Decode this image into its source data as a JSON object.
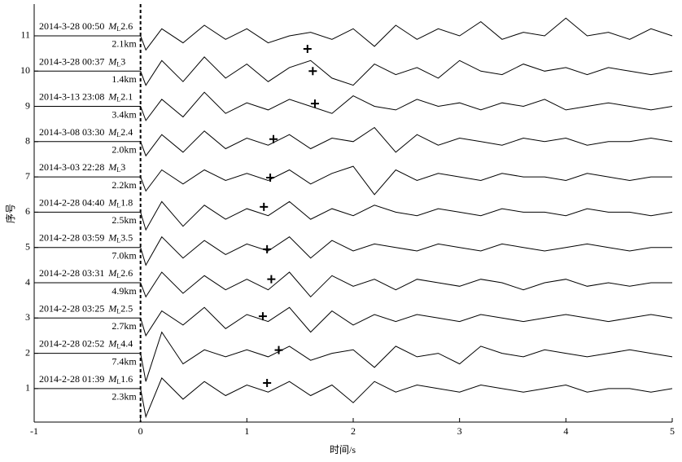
{
  "chart_data": {
    "type": "seismogram",
    "xlabel": "时间/s",
    "ylabel": "序号",
    "xlim": [
      -1,
      5
    ],
    "xticks": [
      -1,
      0,
      1,
      2,
      3,
      4,
      5
    ],
    "ylim": [
      0.05,
      11.9
    ],
    "yticks": [
      1,
      2,
      3,
      4,
      5,
      6,
      7,
      8,
      9,
      10,
      11
    ],
    "reference_line_x": 0,
    "color": "#000000",
    "magnitude_symbol": "M",
    "magnitude_subscript": "L",
    "x": [
      -1,
      0,
      0.05,
      0.2,
      0.4,
      0.6,
      0.8,
      1.0,
      1.2,
      1.4,
      1.6,
      1.8,
      2.0,
      2.2,
      2.4,
      2.6,
      2.8,
      3.0,
      3.2,
      3.4,
      3.6,
      3.8,
      4.0,
      4.2,
      4.4,
      4.6,
      4.8,
      5.0
    ],
    "series": [
      {
        "name": "2014-2-28 01:39",
        "magnitude": 1.6,
        "distance": "2.3km",
        "pick_x": 1.19,
        "pick_y": 1.16,
        "values": [
          1,
          1,
          0.2,
          1.3,
          0.7,
          1.2,
          0.8,
          1.1,
          0.9,
          1.2,
          0.8,
          1.1,
          0.6,
          1.2,
          0.9,
          1.1,
          1.0,
          0.9,
          1.1,
          1.0,
          0.9,
          1.0,
          1.1,
          0.9,
          1.0,
          1.0,
          0.9,
          1.0
        ]
      },
      {
        "name": "2014-2-28 02:52",
        "magnitude": 4.4,
        "distance": "7.4km",
        "pick_x": 1.3,
        "pick_y": 2.09,
        "values": [
          2,
          2,
          1.2,
          2.6,
          1.7,
          2.1,
          1.9,
          2.1,
          1.9,
          2.2,
          1.8,
          2.0,
          2.1,
          1.6,
          2.2,
          1.9,
          2.0,
          1.7,
          2.2,
          2.0,
          1.9,
          2.1,
          2.0,
          1.9,
          2.0,
          2.1,
          2.0,
          1.9
        ]
      },
      {
        "name": "2014-2-28 03:25",
        "magnitude": 2.5,
        "distance": "2.7km",
        "pick_x": 1.15,
        "pick_y": 3.05,
        "values": [
          3,
          3,
          2.5,
          3.2,
          2.8,
          3.3,
          2.7,
          3.1,
          2.9,
          3.3,
          2.6,
          3.2,
          2.8,
          3.1,
          2.9,
          3.1,
          3.0,
          2.9,
          3.1,
          3.0,
          2.9,
          3.0,
          3.1,
          3.0,
          2.9,
          3.0,
          3.1,
          3.0
        ]
      },
      {
        "name": "2014-2-28 03:31",
        "magnitude": 2.6,
        "distance": "4.9km",
        "pick_x": 1.23,
        "pick_y": 4.1,
        "values": [
          4,
          4,
          3.6,
          4.3,
          3.7,
          4.2,
          3.8,
          4.1,
          3.8,
          4.3,
          3.6,
          4.2,
          3.9,
          4.1,
          3.8,
          4.1,
          4.0,
          3.9,
          4.1,
          4.0,
          3.8,
          4.0,
          4.1,
          3.9,
          4.0,
          3.9,
          4.0,
          4.0
        ]
      },
      {
        "name": "2014-2-28 03:59",
        "magnitude": 3.5,
        "distance": "7.0km",
        "pick_x": 1.19,
        "pick_y": 4.95,
        "values": [
          5,
          5,
          4.5,
          5.3,
          4.7,
          5.2,
          4.8,
          5.1,
          4.9,
          5.3,
          4.7,
          5.2,
          4.9,
          5.1,
          5.0,
          4.9,
          5.1,
          5.0,
          4.9,
          5.1,
          5.0,
          4.9,
          5.0,
          5.1,
          5.0,
          4.9,
          5.0,
          5.0
        ]
      },
      {
        "name": "2014-2-28 04:40",
        "magnitude": 1.8,
        "distance": "2.5km",
        "pick_x": 1.16,
        "pick_y": 6.15,
        "values": [
          6,
          6,
          5.5,
          6.3,
          5.6,
          6.2,
          5.8,
          6.1,
          5.9,
          6.3,
          5.8,
          6.1,
          5.9,
          6.2,
          6.0,
          5.9,
          6.1,
          6.0,
          5.9,
          6.1,
          6.0,
          6.0,
          5.9,
          6.1,
          6.0,
          6.0,
          5.9,
          6.0
        ]
      },
      {
        "name": "2014-3-03 22:28",
        "magnitude": 3.0,
        "distance": "2.2km",
        "pick_x": 1.22,
        "pick_y": 6.98,
        "values": [
          7,
          7,
          6.6,
          7.2,
          6.8,
          7.2,
          6.9,
          7.1,
          6.9,
          7.2,
          6.8,
          7.1,
          7.3,
          6.5,
          7.2,
          6.9,
          7.1,
          7.0,
          6.9,
          7.1,
          7.0,
          7.0,
          6.9,
          7.1,
          7.0,
          6.9,
          7.0,
          7.0
        ]
      },
      {
        "name": "2014-3-08 03:30",
        "magnitude": 2.4,
        "distance": "2.0km",
        "pick_x": 1.25,
        "pick_y": 8.07,
        "values": [
          8,
          8,
          7.6,
          8.2,
          7.7,
          8.3,
          7.8,
          8.1,
          7.9,
          8.2,
          7.8,
          8.1,
          8.0,
          8.4,
          7.7,
          8.2,
          7.9,
          8.1,
          8.0,
          7.9,
          8.1,
          8.0,
          8.1,
          7.9,
          8.0,
          8.0,
          8.1,
          8.0
        ]
      },
      {
        "name": "2014-3-13 23:08",
        "magnitude": 2.1,
        "distance": "3.4km",
        "pick_x": 1.64,
        "pick_y": 9.08,
        "values": [
          9,
          9,
          8.6,
          9.2,
          8.7,
          9.4,
          8.8,
          9.1,
          8.9,
          9.2,
          9.0,
          8.8,
          9.3,
          9.0,
          8.9,
          9.2,
          9.0,
          9.1,
          8.9,
          9.1,
          9.0,
          9.2,
          8.9,
          9.0,
          9.1,
          9.0,
          8.9,
          9.0
        ]
      },
      {
        "name": "2014-3-28 00:37",
        "magnitude": 3.0,
        "distance": "1.4km",
        "pick_x": 1.62,
        "pick_y": 10.0,
        "values": [
          10,
          10,
          9.6,
          10.3,
          9.7,
          10.4,
          9.8,
          10.2,
          9.7,
          10.1,
          10.3,
          9.8,
          9.6,
          10.2,
          9.9,
          10.1,
          9.8,
          10.3,
          10.0,
          9.9,
          10.2,
          10.0,
          10.1,
          9.9,
          10.1,
          10.0,
          9.9,
          10.0
        ]
      },
      {
        "name": "2014-3-28 00:50",
        "magnitude": 2.6,
        "distance": "2.1km",
        "pick_x": 1.57,
        "pick_y": 10.63,
        "values": [
          11,
          11,
          10.6,
          11.2,
          10.8,
          11.3,
          10.9,
          11.2,
          10.8,
          11.0,
          11.1,
          10.9,
          11.2,
          10.7,
          11.3,
          10.9,
          11.2,
          11.0,
          11.4,
          10.9,
          11.1,
          11.0,
          11.5,
          11.0,
          11.1,
          10.9,
          11.2,
          11.0
        ]
      }
    ]
  }
}
